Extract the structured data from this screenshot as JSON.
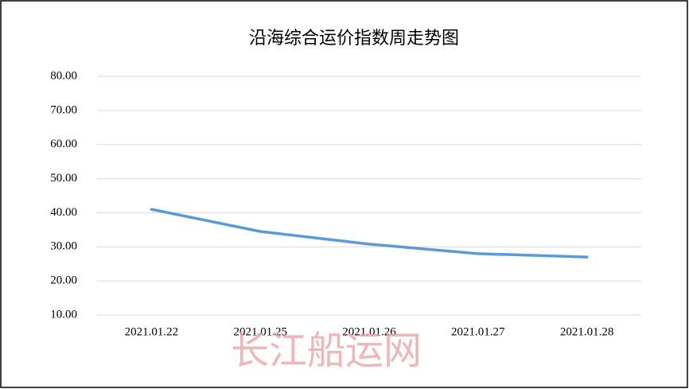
{
  "chart_data": {
    "type": "line",
    "title": "沿海综合运价指数周走势图",
    "categories": [
      "2021.01.22",
      "2021.01.25",
      "2021.01.26",
      "2021.01.27",
      "2021.01.28"
    ],
    "series": [
      {
        "name": "沿海综合运价指数",
        "color": "#5b9bd5",
        "values": [
          41,
          34.5,
          30.8,
          28,
          27
        ]
      }
    ],
    "ylim": [
      10,
      80
    ],
    "yticks": [
      {
        "value": 10,
        "label": "10.00"
      },
      {
        "value": 20,
        "label": "20.00"
      },
      {
        "value": 30,
        "label": "30.00"
      },
      {
        "value": 40,
        "label": "40.00"
      },
      {
        "value": 50,
        "label": "50.00"
      },
      {
        "value": 60,
        "label": "60.00"
      },
      {
        "value": 70,
        "label": "70.00"
      },
      {
        "value": 80,
        "label": "80.00"
      }
    ],
    "grid": true,
    "watermark": "长江船运网"
  }
}
